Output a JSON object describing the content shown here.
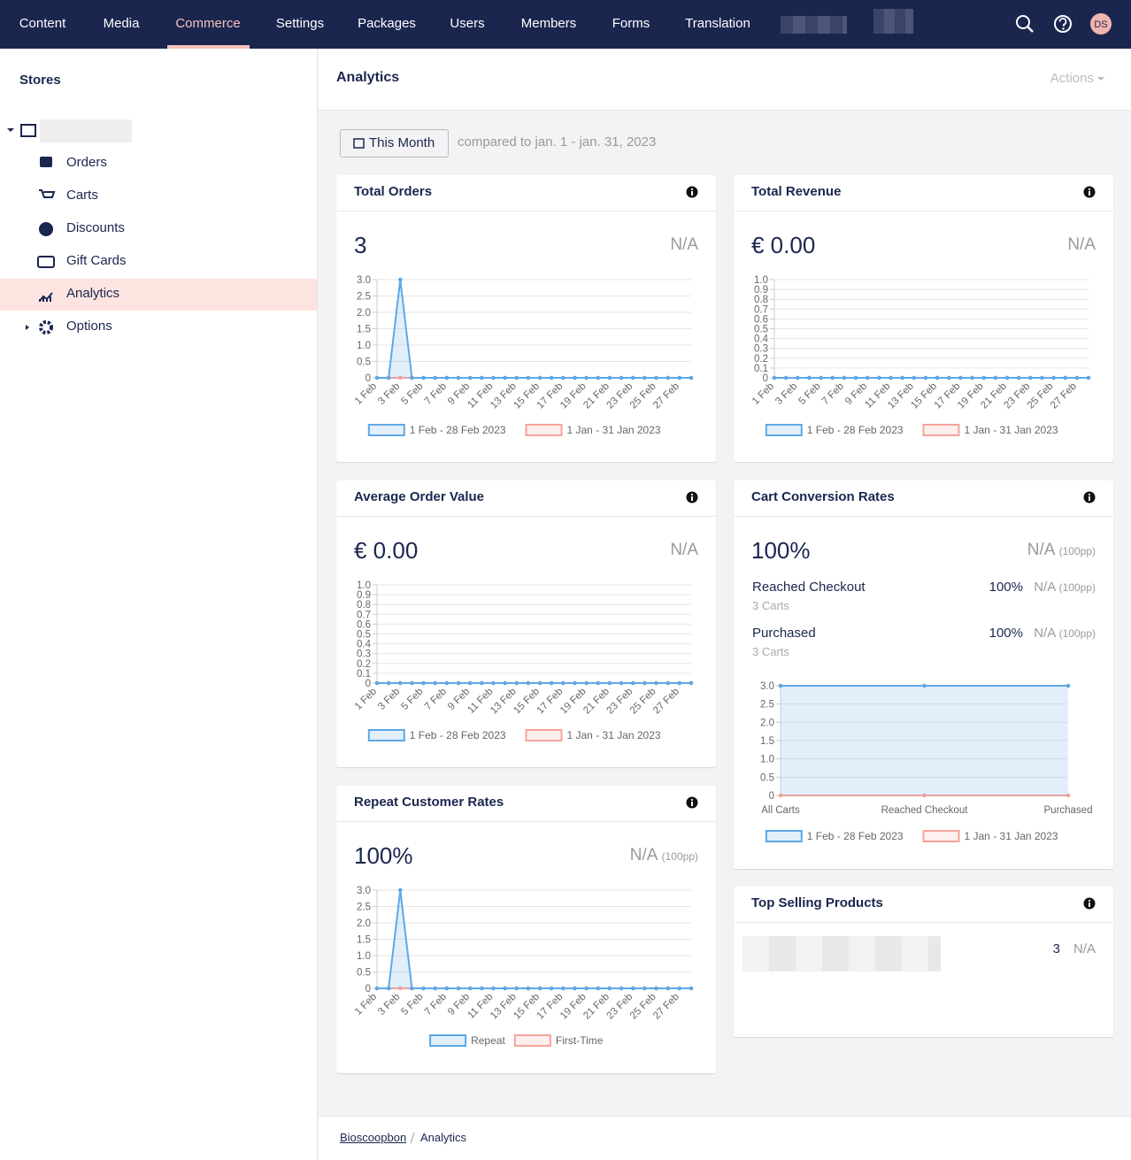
{
  "nav": {
    "items": [
      "Content",
      "Media",
      "Commerce",
      "Settings",
      "Packages",
      "Users",
      "Members",
      "Forms",
      "Translation"
    ],
    "avatar": "DS"
  },
  "sidebar": {
    "title": "Stores",
    "items": [
      "Orders",
      "Carts",
      "Discounts",
      "Gift Cards",
      "Analytics",
      "Options"
    ]
  },
  "header": {
    "title": "Analytics",
    "actions": "Actions"
  },
  "filter": {
    "button": "This Month",
    "compare": "compared to jan. 1 - jan. 31, 2023"
  },
  "cards": [
    {
      "title": "Total Orders",
      "value": "3",
      "comparison": "N/A"
    },
    {
      "title": "Total Revenue",
      "value": "€ 0.00",
      "comparison": "N/A"
    },
    {
      "title": "Average Order Value",
      "value": "€ 0.00",
      "comparison": "N/A"
    },
    {
      "title": "Cart Conversion Rates",
      "value": "100%",
      "comparison": "N/A",
      "comparison_note": "(100pp)",
      "rows": [
        {
          "label": "Reached Checkout",
          "sub": "3 Carts",
          "value": "100%",
          "comparison": "N/A",
          "comparison_note": "(100pp)"
        },
        {
          "label": "Purchased",
          "sub": "3 Carts",
          "value": "100%",
          "comparison": "N/A",
          "comparison_note": "(100pp)"
        }
      ]
    },
    {
      "title": "Repeat Customer Rates",
      "value": "100%",
      "comparison": "N/A",
      "comparison_note": "(100pp)"
    },
    {
      "title": "Top Selling Products",
      "rows": [
        {
          "count": "3",
          "comparison": "N/A"
        }
      ]
    }
  ],
  "chart_data": [
    {
      "type": "area",
      "categories": [
        "1 Feb",
        null,
        "3 Feb",
        null,
        "5 Feb",
        null,
        "7 Feb",
        null,
        "9 Feb",
        null,
        "11 Feb",
        null,
        "13 Feb",
        null,
        "15 Feb",
        null,
        "17 Feb",
        null,
        "19 Feb",
        null,
        "21 Feb",
        null,
        "23 Feb",
        null,
        "25 Feb",
        null,
        "27 Feb",
        null
      ],
      "series": [
        {
          "name": "1 Feb - 28 Feb 2023",
          "color": "#5ea8e6",
          "values": [
            0,
            0,
            3,
            0,
            0,
            0,
            0,
            0,
            0,
            0,
            0,
            0,
            0,
            0,
            0,
            0,
            0,
            0,
            0,
            0,
            0,
            0,
            0,
            0,
            0,
            0,
            0,
            0
          ]
        },
        {
          "name": "1 Jan - 31 Jan 2023",
          "color": "#f5a49b",
          "values": [
            0,
            0,
            0,
            0,
            0,
            0,
            0,
            0,
            0,
            0,
            0,
            0,
            0,
            0,
            0,
            0,
            0,
            0,
            0,
            0,
            0,
            0,
            0,
            0,
            0,
            0,
            0,
            0
          ]
        }
      ],
      "ylim": [
        0,
        3
      ],
      "yticks": [
        0,
        0.5,
        {
          "value": 1,
          "label": "1.0"
        },
        1.5,
        {
          "value": 2,
          "label": "2.0"
        },
        2.5,
        {
          "value": 3,
          "label": "3.0"
        }
      ],
      "grid": true
    },
    {
      "type": "area",
      "categories": [
        "1 Feb",
        null,
        "3 Feb",
        null,
        "5 Feb",
        null,
        "7 Feb",
        null,
        "9 Feb",
        null,
        "11 Feb",
        null,
        "13 Feb",
        null,
        "15 Feb",
        null,
        "17 Feb",
        null,
        "19 Feb",
        null,
        "21 Feb",
        null,
        "23 Feb",
        null,
        "25 Feb",
        null,
        "27 Feb",
        null
      ],
      "series": [
        {
          "name": "1 Feb - 28 Feb 2023",
          "color": "#5ea8e6",
          "values": [
            0,
            0,
            0,
            0,
            0,
            0,
            0,
            0,
            0,
            0,
            0,
            0,
            0,
            0,
            0,
            0,
            0,
            0,
            0,
            0,
            0,
            0,
            0,
            0,
            0,
            0,
            0,
            0
          ]
        },
        {
          "name": "1 Jan - 31 Jan 2023",
          "color": "#f5a49b",
          "values": [
            0,
            0,
            0,
            0,
            0,
            0,
            0,
            0,
            0,
            0,
            0,
            0,
            0,
            0,
            0,
            0,
            0,
            0,
            0,
            0,
            0,
            0,
            0,
            0,
            0,
            0,
            0,
            0
          ]
        }
      ],
      "ylim": [
        0,
        1
      ],
      "yticks": [
        0,
        0.1,
        0.2,
        0.3,
        0.4,
        0.5,
        0.6,
        0.7,
        0.8,
        0.9,
        {
          "value": 1,
          "label": "1.0"
        }
      ],
      "grid": true
    },
    {
      "type": "area",
      "categories": [
        "1 Feb",
        null,
        "3 Feb",
        null,
        "5 Feb",
        null,
        "7 Feb",
        null,
        "9 Feb",
        null,
        "11 Feb",
        null,
        "13 Feb",
        null,
        "15 Feb",
        null,
        "17 Feb",
        null,
        "19 Feb",
        null,
        "21 Feb",
        null,
        "23 Feb",
        null,
        "25 Feb",
        null,
        "27 Feb",
        null
      ],
      "series": [
        {
          "name": "1 Feb - 28 Feb 2023",
          "color": "#5ea8e6",
          "values": [
            0,
            0,
            0,
            0,
            0,
            0,
            0,
            0,
            0,
            0,
            0,
            0,
            0,
            0,
            0,
            0,
            0,
            0,
            0,
            0,
            0,
            0,
            0,
            0,
            0,
            0,
            0,
            0
          ]
        },
        {
          "name": "1 Jan - 31 Jan 2023",
          "color": "#f5a49b",
          "values": [
            0,
            0,
            0,
            0,
            0,
            0,
            0,
            0,
            0,
            0,
            0,
            0,
            0,
            0,
            0,
            0,
            0,
            0,
            0,
            0,
            0,
            0,
            0,
            0,
            0,
            0,
            0,
            0
          ]
        }
      ],
      "ylim": [
        0,
        1
      ],
      "yticks": [
        0,
        0.1,
        0.2,
        0.3,
        0.4,
        0.5,
        0.6,
        0.7,
        0.8,
        0.9,
        {
          "value": 1,
          "label": "1.0"
        }
      ],
      "grid": true
    },
    {
      "type": "area",
      "categories": [
        "All Carts",
        "Reached Checkout",
        "Purchased"
      ],
      "series": [
        {
          "name": "1 Feb - 28 Feb 2023",
          "color": "#5ea8e6",
          "values": [
            3,
            3,
            3
          ]
        },
        {
          "name": "1 Jan - 31 Jan 2023",
          "color": "#f5a49b",
          "values": [
            0,
            0,
            0
          ]
        }
      ],
      "ylim": [
        0,
        3
      ],
      "yticks": [
        0,
        0.5,
        {
          "value": 1,
          "label": "1.0"
        },
        1.5,
        {
          "value": 2,
          "label": "2.0"
        },
        2.5,
        {
          "value": 3,
          "label": "3.0"
        }
      ],
      "grid": true
    },
    {
      "type": "area",
      "categories": [
        "1 Feb",
        null,
        "3 Feb",
        null,
        "5 Feb",
        null,
        "7 Feb",
        null,
        "9 Feb",
        null,
        "11 Feb",
        null,
        "13 Feb",
        null,
        "15 Feb",
        null,
        "17 Feb",
        null,
        "19 Feb",
        null,
        "21 Feb",
        null,
        "23 Feb",
        null,
        "25 Feb",
        null,
        "27 Feb",
        null
      ],
      "series": [
        {
          "name": "Repeat",
          "color": "#5ea8e6",
          "values": [
            0,
            0,
            3,
            0,
            0,
            0,
            0,
            0,
            0,
            0,
            0,
            0,
            0,
            0,
            0,
            0,
            0,
            0,
            0,
            0,
            0,
            0,
            0,
            0,
            0,
            0,
            0,
            0
          ]
        },
        {
          "name": "First-Time",
          "color": "#f5a49b",
          "values": [
            0,
            0,
            0,
            0,
            0,
            0,
            0,
            0,
            0,
            0,
            0,
            0,
            0,
            0,
            0,
            0,
            0,
            0,
            0,
            0,
            0,
            0,
            0,
            0,
            0,
            0,
            0,
            0
          ]
        }
      ],
      "ylim": [
        0,
        3
      ],
      "yticks": [
        0,
        0.5,
        {
          "value": 1,
          "label": "1.0"
        },
        1.5,
        {
          "value": 2,
          "label": "2.0"
        },
        2.5,
        {
          "value": 3,
          "label": "3.0"
        }
      ],
      "grid": true
    }
  ],
  "breadcrumb": [
    "Bioscoopbon",
    "Analytics"
  ]
}
